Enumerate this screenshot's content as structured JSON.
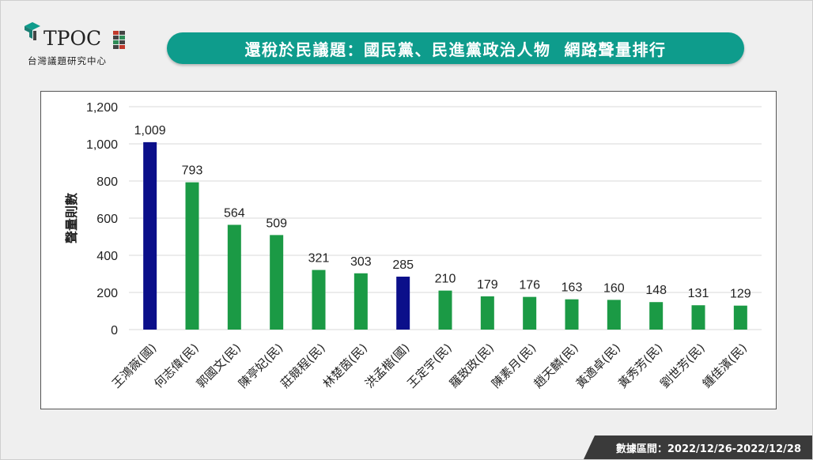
{
  "logo": {
    "name": "TPOC",
    "subtitle": "台灣議題研究中心"
  },
  "header": {
    "title": "還稅於民議題：國民黨、民進黨政治人物  網路聲量排行"
  },
  "footer": {
    "date_range": "數據區間：2022/12/26-2022/12/28"
  },
  "colors": {
    "accent": "#0e9c8c",
    "kmt_bar": "#0b0f8a",
    "dpp_bar": "#1b9a45"
  },
  "chart_data": {
    "type": "bar",
    "title": "",
    "xlabel": "",
    "ylabel": "聲量則數",
    "ylim": [
      0,
      1200
    ],
    "yticks": [
      0,
      200,
      400,
      600,
      800,
      1000,
      1200
    ],
    "ytick_labels": [
      "0",
      "200",
      "400",
      "600",
      "800",
      "1,000",
      "1,200"
    ],
    "grid": true,
    "categories": [
      "王鴻薇(國)",
      "何志偉(民)",
      "郭國文(民)",
      "陳亭妃(民)",
      "莊競程(民)",
      "林楚茵(民)",
      "洪孟楷(國)",
      "王定宇(民)",
      "羅致政(民)",
      "陳素月(民)",
      "趙天麟(民)",
      "黃適卓(民)",
      "黃秀芳(民)",
      "劉世芳(民)",
      "鍾佳濱(民)"
    ],
    "values": [
      1009,
      793,
      564,
      509,
      321,
      303,
      285,
      210,
      179,
      176,
      163,
      160,
      148,
      131,
      129
    ],
    "value_labels": [
      "1,009",
      "793",
      "564",
      "509",
      "321",
      "303",
      "285",
      "210",
      "179",
      "176",
      "163",
      "160",
      "148",
      "131",
      "129"
    ],
    "bar_colors": [
      "#0b0f8a",
      "#1b9a45",
      "#1b9a45",
      "#1b9a45",
      "#1b9a45",
      "#1b9a45",
      "#0b0f8a",
      "#1b9a45",
      "#1b9a45",
      "#1b9a45",
      "#1b9a45",
      "#1b9a45",
      "#1b9a45",
      "#1b9a45",
      "#1b9a45"
    ]
  }
}
